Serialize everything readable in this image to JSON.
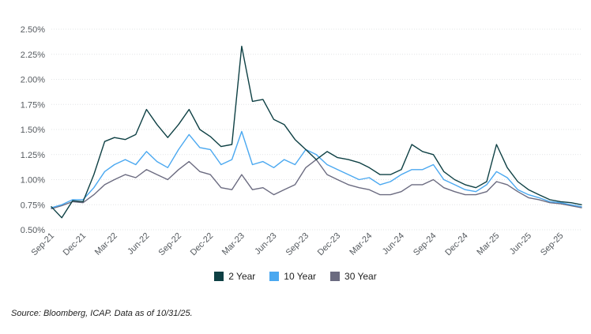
{
  "chart_data": {
    "type": "line",
    "ylim": [
      0.005,
      0.025
    ],
    "y_ticks": [
      "2.50%",
      "2.25%",
      "2.00%",
      "1.75%",
      "1.50%",
      "1.25%",
      "1.00%",
      "0.75%",
      "0.50%"
    ],
    "x_ticks": [
      "Sep-21",
      "Dec-21",
      "Mar-22",
      "Jun-22",
      "Sep-22",
      "Dec-22",
      "Mar-23",
      "Jun-23",
      "Sep-23",
      "Dec-23",
      "Mar-24",
      "Jun-24",
      "Sep-24",
      "Dec-24",
      "Mar-25",
      "Jun-25",
      "Sep-25"
    ],
    "x_start": "2021-09-01",
    "x_end": "2025-10-31",
    "grid": "horizontal-dotted",
    "legend_position": "bottom",
    "series": [
      {
        "name": "2 Year",
        "color": "#0e4044",
        "points": [
          [
            "2021-09-01",
            0.73
          ],
          [
            "2021-10-01",
            0.62
          ],
          [
            "2021-11-01",
            0.79
          ],
          [
            "2021-12-01",
            0.78
          ],
          [
            "2022-01-01",
            1.05
          ],
          [
            "2022-02-01",
            1.38
          ],
          [
            "2022-03-01",
            1.42
          ],
          [
            "2022-04-01",
            1.4
          ],
          [
            "2022-05-01",
            1.45
          ],
          [
            "2022-06-01",
            1.7
          ],
          [
            "2022-07-01",
            1.55
          ],
          [
            "2022-08-01",
            1.42
          ],
          [
            "2022-09-01",
            1.55
          ],
          [
            "2022-10-01",
            1.7
          ],
          [
            "2022-11-01",
            1.5
          ],
          [
            "2022-12-01",
            1.43
          ],
          [
            "2023-01-01",
            1.33
          ],
          [
            "2023-02-01",
            1.35
          ],
          [
            "2023-03-01",
            2.33
          ],
          [
            "2023-04-01",
            1.78
          ],
          [
            "2023-05-01",
            1.8
          ],
          [
            "2023-06-01",
            1.6
          ],
          [
            "2023-07-01",
            1.55
          ],
          [
            "2023-08-01",
            1.4
          ],
          [
            "2023-09-01",
            1.3
          ],
          [
            "2023-10-01",
            1.2
          ],
          [
            "2023-11-01",
            1.28
          ],
          [
            "2023-12-01",
            1.22
          ],
          [
            "2024-01-01",
            1.2
          ],
          [
            "2024-02-01",
            1.17
          ],
          [
            "2024-03-01",
            1.12
          ],
          [
            "2024-04-01",
            1.05
          ],
          [
            "2024-05-01",
            1.05
          ],
          [
            "2024-06-01",
            1.1
          ],
          [
            "2024-07-01",
            1.35
          ],
          [
            "2024-08-01",
            1.28
          ],
          [
            "2024-09-01",
            1.25
          ],
          [
            "2024-10-01",
            1.08
          ],
          [
            "2024-11-01",
            1.0
          ],
          [
            "2024-12-01",
            0.95
          ],
          [
            "2025-01-01",
            0.92
          ],
          [
            "2025-02-01",
            0.98
          ],
          [
            "2025-03-01",
            1.35
          ],
          [
            "2025-04-01",
            1.12
          ],
          [
            "2025-05-01",
            0.98
          ],
          [
            "2025-06-01",
            0.9
          ],
          [
            "2025-07-01",
            0.85
          ],
          [
            "2025-08-01",
            0.8
          ],
          [
            "2025-09-01",
            0.78
          ],
          [
            "2025-10-01",
            0.77
          ],
          [
            "2025-10-31",
            0.75
          ]
        ]
      },
      {
        "name": "10 Year",
        "color": "#4aa8f0",
        "points": [
          [
            "2021-09-01",
            0.72
          ],
          [
            "2021-10-01",
            0.75
          ],
          [
            "2021-11-01",
            0.8
          ],
          [
            "2021-12-01",
            0.8
          ],
          [
            "2022-01-01",
            0.92
          ],
          [
            "2022-02-01",
            1.08
          ],
          [
            "2022-03-01",
            1.15
          ],
          [
            "2022-04-01",
            1.2
          ],
          [
            "2022-05-01",
            1.15
          ],
          [
            "2022-06-01",
            1.28
          ],
          [
            "2022-07-01",
            1.18
          ],
          [
            "2022-08-01",
            1.12
          ],
          [
            "2022-09-01",
            1.3
          ],
          [
            "2022-10-01",
            1.45
          ],
          [
            "2022-11-01",
            1.32
          ],
          [
            "2022-12-01",
            1.3
          ],
          [
            "2023-01-01",
            1.15
          ],
          [
            "2023-02-01",
            1.2
          ],
          [
            "2023-03-01",
            1.48
          ],
          [
            "2023-04-01",
            1.15
          ],
          [
            "2023-05-01",
            1.18
          ],
          [
            "2023-06-01",
            1.12
          ],
          [
            "2023-07-01",
            1.2
          ],
          [
            "2023-08-01",
            1.15
          ],
          [
            "2023-09-01",
            1.3
          ],
          [
            "2023-10-01",
            1.25
          ],
          [
            "2023-11-01",
            1.15
          ],
          [
            "2023-12-01",
            1.1
          ],
          [
            "2024-01-01",
            1.05
          ],
          [
            "2024-02-01",
            1.0
          ],
          [
            "2024-03-01",
            1.02
          ],
          [
            "2024-04-01",
            0.95
          ],
          [
            "2024-05-01",
            0.98
          ],
          [
            "2024-06-01",
            1.05
          ],
          [
            "2024-07-01",
            1.1
          ],
          [
            "2024-08-01",
            1.1
          ],
          [
            "2024-09-01",
            1.15
          ],
          [
            "2024-10-01",
            1.0
          ],
          [
            "2024-11-01",
            0.95
          ],
          [
            "2024-12-01",
            0.9
          ],
          [
            "2025-01-01",
            0.88
          ],
          [
            "2025-02-01",
            0.95
          ],
          [
            "2025-03-01",
            1.08
          ],
          [
            "2025-04-01",
            1.02
          ],
          [
            "2025-05-01",
            0.9
          ],
          [
            "2025-06-01",
            0.85
          ],
          [
            "2025-07-01",
            0.82
          ],
          [
            "2025-08-01",
            0.78
          ],
          [
            "2025-09-01",
            0.77
          ],
          [
            "2025-10-01",
            0.75
          ],
          [
            "2025-10-31",
            0.73
          ]
        ]
      },
      {
        "name": "30 Year",
        "color": "#6b6b80",
        "points": [
          [
            "2021-09-01",
            0.71
          ],
          [
            "2021-10-01",
            0.74
          ],
          [
            "2021-11-01",
            0.78
          ],
          [
            "2021-12-01",
            0.77
          ],
          [
            "2022-01-01",
            0.85
          ],
          [
            "2022-02-01",
            0.95
          ],
          [
            "2022-03-01",
            1.0
          ],
          [
            "2022-04-01",
            1.05
          ],
          [
            "2022-05-01",
            1.02
          ],
          [
            "2022-06-01",
            1.1
          ],
          [
            "2022-07-01",
            1.05
          ],
          [
            "2022-08-01",
            1.0
          ],
          [
            "2022-09-01",
            1.1
          ],
          [
            "2022-10-01",
            1.18
          ],
          [
            "2022-11-01",
            1.08
          ],
          [
            "2022-12-01",
            1.05
          ],
          [
            "2023-01-01",
            0.92
          ],
          [
            "2023-02-01",
            0.9
          ],
          [
            "2023-03-01",
            1.05
          ],
          [
            "2023-04-01",
            0.9
          ],
          [
            "2023-05-01",
            0.92
          ],
          [
            "2023-06-01",
            0.85
          ],
          [
            "2023-07-01",
            0.9
          ],
          [
            "2023-08-01",
            0.95
          ],
          [
            "2023-09-01",
            1.12
          ],
          [
            "2023-10-01",
            1.2
          ],
          [
            "2023-11-01",
            1.05
          ],
          [
            "2023-12-01",
            1.0
          ],
          [
            "2024-01-01",
            0.95
          ],
          [
            "2024-02-01",
            0.92
          ],
          [
            "2024-03-01",
            0.9
          ],
          [
            "2024-04-01",
            0.85
          ],
          [
            "2024-05-01",
            0.85
          ],
          [
            "2024-06-01",
            0.88
          ],
          [
            "2024-07-01",
            0.95
          ],
          [
            "2024-08-01",
            0.95
          ],
          [
            "2024-09-01",
            1.0
          ],
          [
            "2024-10-01",
            0.92
          ],
          [
            "2024-11-01",
            0.88
          ],
          [
            "2024-12-01",
            0.85
          ],
          [
            "2025-01-01",
            0.85
          ],
          [
            "2025-02-01",
            0.88
          ],
          [
            "2025-03-01",
            0.98
          ],
          [
            "2025-04-01",
            0.95
          ],
          [
            "2025-05-01",
            0.88
          ],
          [
            "2025-06-01",
            0.82
          ],
          [
            "2025-07-01",
            0.8
          ],
          [
            "2025-08-01",
            0.77
          ],
          [
            "2025-09-01",
            0.76
          ],
          [
            "2025-10-01",
            0.74
          ],
          [
            "2025-10-31",
            0.72
          ]
        ]
      }
    ]
  },
  "source_note": "Source: Bloomberg, ICAP. Data as of 10/31/25."
}
